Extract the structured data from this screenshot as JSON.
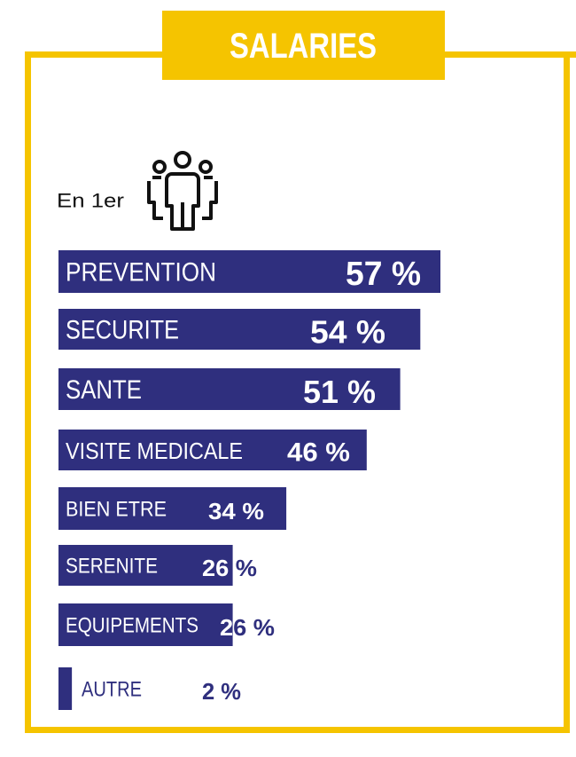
{
  "chart_data": {
    "type": "bar",
    "orientation": "horizontal",
    "title": "SALARIES",
    "annotation": "En 1er",
    "categories": [
      "PREVENTION",
      "SECURITE",
      "SANTE",
      "VISITE MEDICALE",
      "BIEN ETRE",
      "SERENITE",
      "EQUIPEMENTS",
      "AUTRE"
    ],
    "values": [
      57,
      54,
      51,
      46,
      34,
      26,
      26,
      2
    ],
    "value_labels": [
      "57 %",
      "54 %",
      "51 %",
      "46 %",
      "34 %",
      "26 %",
      "26 %",
      "2 %"
    ],
    "color": "#2f2f7e",
    "frame_color": "#f5c400"
  }
}
